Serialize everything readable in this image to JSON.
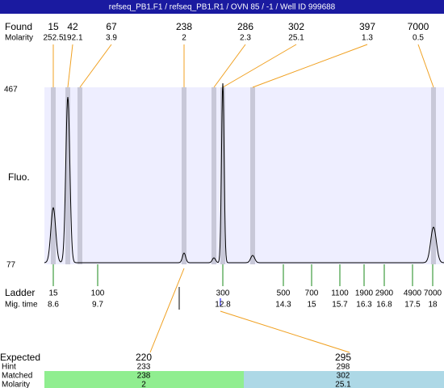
{
  "title": "refseq_PB1.F1 / refseq_PB1.R1 / OVN 85 / -1 / Well ID 999688",
  "found": {
    "label": "Found",
    "molarity_label": "Molarity",
    "peaks": [
      {
        "size": 15,
        "molarity": 252.5
      },
      {
        "size": 42,
        "molarity": 192.1
      },
      {
        "size": 67,
        "molarity": 3.9
      },
      {
        "size": 238,
        "molarity": 2
      },
      {
        "size": 286,
        "molarity": 2.3
      },
      {
        "size": 302,
        "molarity": 25.1
      },
      {
        "size": 397,
        "molarity": 1.3
      },
      {
        "size": 7000,
        "molarity": 0.5
      }
    ]
  },
  "trace": {
    "label": "Fluo.",
    "ymax": 467,
    "ymin": 77
  },
  "ladder": {
    "label": "Ladder",
    "time_label": "Mig. time",
    "bands": [
      {
        "size": 15,
        "time": 8.6
      },
      {
        "size": 100,
        "time": 9.7
      },
      {
        "size": 300,
        "time": 12.8
      },
      {
        "size": 500,
        "time": 14.3
      },
      {
        "size": 700,
        "time": 15
      },
      {
        "size": 1100,
        "time": 15.7
      },
      {
        "size": 1900,
        "time": 16.3
      },
      {
        "size": 2900,
        "time": 16.8
      },
      {
        "size": 4900,
        "time": 17.5
      },
      {
        "size": 7000,
        "time": 18
      }
    ]
  },
  "expected": {
    "label": "Expected",
    "hint_label": "Hint",
    "matched_label": "Matched",
    "molarity_label": "Molarity",
    "items": [
      {
        "size": 220,
        "hint": 233,
        "matched": 238,
        "molarity": 2
      },
      {
        "size": 295,
        "hint": 298,
        "matched": 302,
        "molarity": 25.1
      }
    ]
  }
}
